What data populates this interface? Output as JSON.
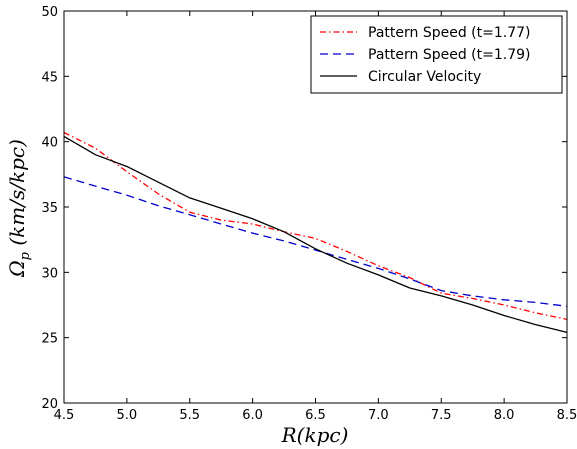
{
  "chart_data": {
    "type": "line",
    "title": "",
    "xlabel": "R(kpc)",
    "ylabel": "Ω_p (km/s/kpc)",
    "xlim": [
      4.5,
      8.5
    ],
    "ylim": [
      20,
      50
    ],
    "x_ticks": [
      "4.5",
      "5.0",
      "5.5",
      "6.0",
      "6.5",
      "7.0",
      "7.5",
      "8.0",
      "8.5"
    ],
    "y_ticks": [
      "20",
      "25",
      "30",
      "35",
      "40",
      "45",
      "50"
    ],
    "grid": false,
    "legend_position": "top-right",
    "series": [
      {
        "name": "Pattern Speed (t=1.77)",
        "color": "#ff0000",
        "style": "dash-dot",
        "x": [
          4.5,
          4.75,
          5.0,
          5.25,
          5.5,
          5.75,
          6.0,
          6.25,
          6.5,
          6.75,
          7.0,
          7.25,
          7.5,
          7.75,
          8.0,
          8.25,
          8.5
        ],
        "y": [
          40.7,
          39.5,
          37.7,
          36.0,
          34.6,
          34.0,
          33.7,
          33.1,
          32.6,
          31.6,
          30.5,
          29.6,
          28.4,
          28.0,
          27.5,
          26.9,
          26.4
        ]
      },
      {
        "name": "Pattern Speed (t=1.79)",
        "color": "#0000cc",
        "style": "dashed",
        "x": [
          4.5,
          4.75,
          5.0,
          5.25,
          5.5,
          5.75,
          6.0,
          6.25,
          6.5,
          6.75,
          7.0,
          7.25,
          7.5,
          7.75,
          8.0,
          8.25,
          8.5
        ],
        "y": [
          37.3,
          36.6,
          35.9,
          35.1,
          34.4,
          33.7,
          33.0,
          32.4,
          31.7,
          31.0,
          30.3,
          29.5,
          28.6,
          28.2,
          27.9,
          27.7,
          27.4
        ]
      },
      {
        "name": "Circular Velocity",
        "color": "#000000",
        "style": "solid",
        "x": [
          4.5,
          4.75,
          5.0,
          5.25,
          5.5,
          5.75,
          6.0,
          6.25,
          6.5,
          6.75,
          7.0,
          7.25,
          7.5,
          7.75,
          8.0,
          8.25,
          8.5
        ],
        "y": [
          40.4,
          39.0,
          38.1,
          36.9,
          35.7,
          34.9,
          34.1,
          33.1,
          31.8,
          30.7,
          29.8,
          28.8,
          28.2,
          27.5,
          26.7,
          26.0,
          25.4
        ]
      }
    ]
  }
}
